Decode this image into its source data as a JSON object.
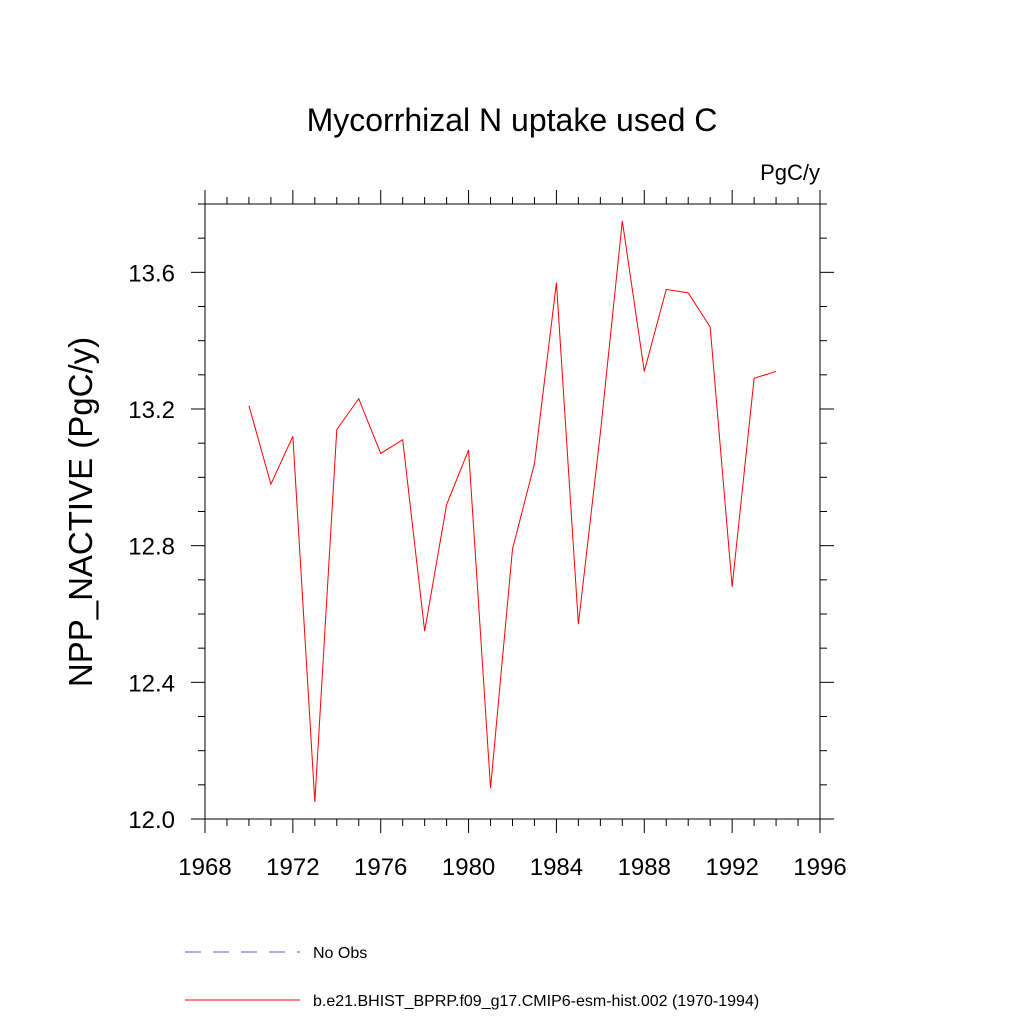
{
  "chart_data": {
    "type": "line",
    "title": "Mycorrhizal N uptake used C",
    "units": "PgC/y",
    "xlabel": "",
    "ylabel": "NPP_NACTIVE  (PgC/y)",
    "xlim": [
      1968,
      1996
    ],
    "ylim": [
      12.0,
      13.8
    ],
    "x_ticks": [
      1968,
      1972,
      1976,
      1980,
      1984,
      1988,
      1992,
      1996
    ],
    "x_tick_labels": [
      "1968",
      "1972",
      "1976",
      "1980",
      "1984",
      "1988",
      "1992",
      "1996"
    ],
    "x_minor_step": 1,
    "y_ticks": [
      12.0,
      12.4,
      12.8,
      13.2,
      13.6
    ],
    "y_tick_labels": [
      "12.0",
      "12.4",
      "12.8",
      "13.2",
      "13.6"
    ],
    "y_minor_step": 0.1,
    "grid": false,
    "series": [
      {
        "name": "b.e21.BHIST_BPRP.f09_g17.CMIP6-esm-hist.002 (1970-1994)",
        "color": "#ff0000",
        "style": "solid",
        "x": [
          1970,
          1971,
          1972,
          1973,
          1974,
          1975,
          1976,
          1977,
          1978,
          1979,
          1980,
          1981,
          1982,
          1983,
          1984,
          1985,
          1986,
          1987,
          1988,
          1989,
          1990,
          1991,
          1992,
          1993,
          1994
        ],
        "y": [
          13.21,
          12.98,
          13.12,
          12.05,
          13.14,
          13.23,
          13.07,
          13.11,
          12.55,
          12.92,
          13.08,
          12.09,
          12.79,
          13.04,
          13.57,
          12.57,
          13.13,
          13.75,
          13.31,
          13.55,
          13.54,
          13.44,
          12.68,
          13.29,
          13.31
        ]
      }
    ],
    "legend": [
      {
        "label": "No Obs",
        "color": "#6a5acd",
        "style": "dashed"
      },
      {
        "label": "b.e21.BHIST_BPRP.f09_g17.CMIP6-esm-hist.002 (1970-1994)",
        "color": "#ff0000",
        "style": "solid"
      }
    ],
    "legend_position": "bottom"
  }
}
